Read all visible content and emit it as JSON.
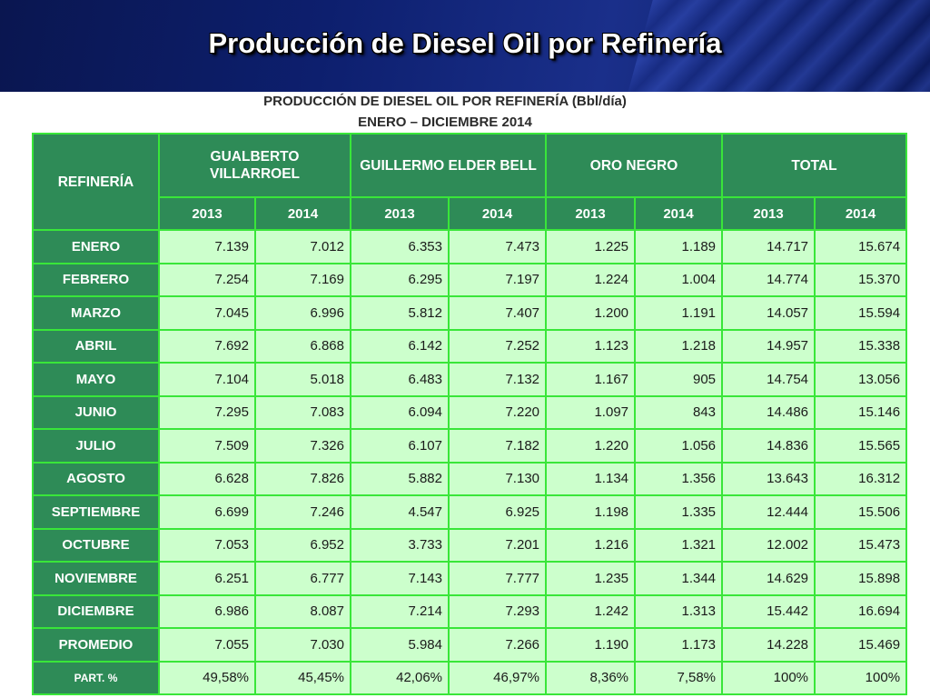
{
  "slide_title": "Producción de Diesel Oil por Refinería",
  "table_title": "PRODUCCIÓN DE DIESEL OIL POR REFINERÍA (Bbl/día)",
  "table_subtitle": "ENERO – DICIEMBRE 2014",
  "headers": {
    "refineria": "REFINERÍA",
    "groups": [
      "GUALBERTO VILLARROEL",
      "GUILLERMO ELDER BELL",
      "ORO NEGRO",
      "TOTAL"
    ],
    "years": [
      "2013",
      "2014",
      "2013",
      "2014",
      "2013",
      "2014",
      "2013",
      "2014"
    ]
  },
  "rows": [
    {
      "label": "ENERO",
      "values": [
        "7.139",
        "7.012",
        "6.353",
        "7.473",
        "1.225",
        "1.189",
        "14.717",
        "15.674"
      ]
    },
    {
      "label": "FEBRERO",
      "values": [
        "7.254",
        "7.169",
        "6.295",
        "7.197",
        "1.224",
        "1.004",
        "14.774",
        "15.370"
      ]
    },
    {
      "label": "MARZO",
      "values": [
        "7.045",
        "6.996",
        "5.812",
        "7.407",
        "1.200",
        "1.191",
        "14.057",
        "15.594"
      ]
    },
    {
      "label": "ABRIL",
      "values": [
        "7.692",
        "6.868",
        "6.142",
        "7.252",
        "1.123",
        "1.218",
        "14.957",
        "15.338"
      ]
    },
    {
      "label": "MAYO",
      "values": [
        "7.104",
        "5.018",
        "6.483",
        "7.132",
        "1.167",
        "905",
        "14.754",
        "13.056"
      ]
    },
    {
      "label": "JUNIO",
      "values": [
        "7.295",
        "7.083",
        "6.094",
        "7.220",
        "1.097",
        "843",
        "14.486",
        "15.146"
      ]
    },
    {
      "label": "JULIO",
      "values": [
        "7.509",
        "7.326",
        "6.107",
        "7.182",
        "1.220",
        "1.056",
        "14.836",
        "15.565"
      ]
    },
    {
      "label": "AGOSTO",
      "values": [
        "6.628",
        "7.826",
        "5.882",
        "7.130",
        "1.134",
        "1.356",
        "13.643",
        "16.312"
      ]
    },
    {
      "label": "SEPTIEMBRE",
      "values": [
        "6.699",
        "7.246",
        "4.547",
        "6.925",
        "1.198",
        "1.335",
        "12.444",
        "15.506"
      ]
    },
    {
      "label": "OCTUBRE",
      "values": [
        "7.053",
        "6.952",
        "3.733",
        "7.201",
        "1.216",
        "1.321",
        "12.002",
        "15.473"
      ]
    },
    {
      "label": "NOVIEMBRE",
      "values": [
        "6.251",
        "6.777",
        "7.143",
        "7.777",
        "1.235",
        "1.344",
        "14.629",
        "15.898"
      ]
    },
    {
      "label": "DICIEMBRE",
      "values": [
        "6.986",
        "8.087",
        "7.214",
        "7.293",
        "1.242",
        "1.313",
        "15.442",
        "16.694"
      ]
    },
    {
      "label": "PROMEDIO",
      "values": [
        "7.055",
        "7.030",
        "5.984",
        "7.266",
        "1.190",
        "1.173",
        "14.228",
        "15.469"
      ]
    },
    {
      "label": "PART. %",
      "values": [
        "49,58%",
        "45,45%",
        "42,06%",
        "46,97%",
        "8,36%",
        "7,58%",
        "100%",
        "100%"
      ]
    }
  ],
  "colors": {
    "header_green": "#2e8b57",
    "cell_green": "#ccffcc",
    "border_green": "#39e639",
    "banner_blue": "#0d1f6e"
  }
}
